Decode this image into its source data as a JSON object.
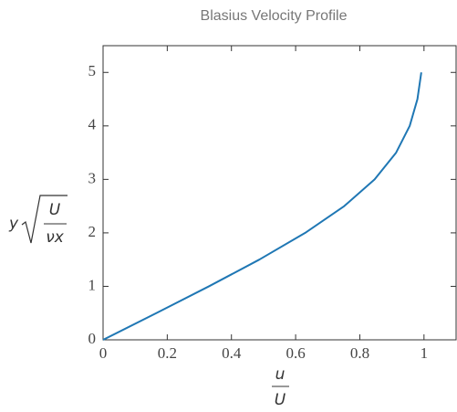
{
  "chart_data": {
    "type": "line",
    "title": "Blasius Velocity Profile",
    "xlabel": {
      "numerator": "u",
      "denominator": "U"
    },
    "ylabel": {
      "prefix": "y",
      "numerator": "U",
      "denominator": "νx"
    },
    "x": [
      0,
      0.1659,
      0.3298,
      0.4868,
      0.6298,
      0.7513,
      0.8461,
      0.9131,
      0.9555,
      0.9795,
      0.9916
    ],
    "values": [
      0,
      0.5,
      1,
      1.5,
      2,
      2.5,
      3,
      3.5,
      4,
      4.5,
      5
    ],
    "color": "#1f77b4",
    "xlim": [
      0,
      1.1
    ],
    "ylim": [
      0,
      5.5
    ],
    "xticks": [
      0,
      0.2,
      0.4,
      0.6,
      0.8,
      1
    ],
    "yticks": [
      0,
      1,
      2,
      3,
      4,
      5
    ],
    "grid": false
  }
}
